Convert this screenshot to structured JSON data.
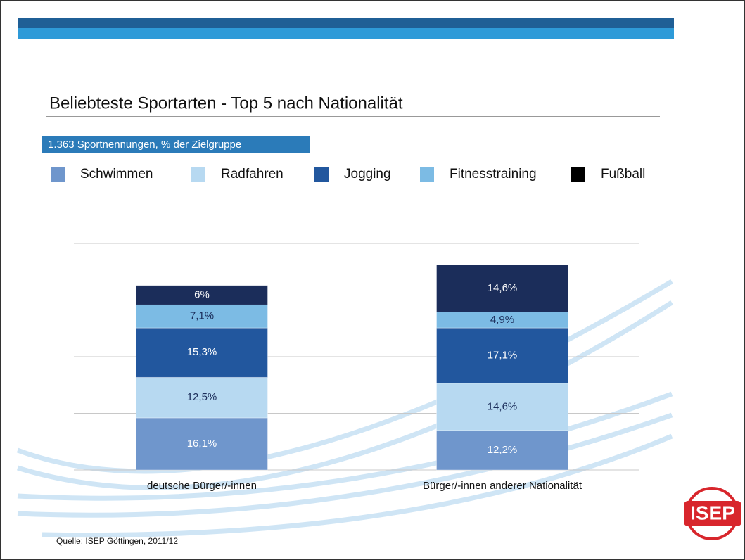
{
  "chart_data": {
    "type": "stacked-bar",
    "title": "Beliebteste Sportarten - Top 5 nach Nationalität",
    "subtitle": "1.363 Sportnennungen, % der Zielgruppe",
    "source": "Quelle: ISEP Göttingen, 2011/12",
    "logo": "ISEP",
    "categories": [
      "deutsche Bürger/-innen",
      "Bürger/-innen anderer Nationalität"
    ],
    "series": [
      {
        "name": "Schwimmen",
        "color": "#6f96cc",
        "values": [
          16.1,
          12.2
        ],
        "value_labels": [
          "16,1%",
          "12,2%"
        ]
      },
      {
        "name": "Radfahren",
        "color": "#b7d9f1",
        "values": [
          12.5,
          14.6
        ],
        "value_labels": [
          "12,5%",
          "14,6%"
        ]
      },
      {
        "name": "Jogging",
        "color": "#22579e",
        "values": [
          15.3,
          17.1
        ],
        "value_labels": [
          "15,3%",
          "17,1%"
        ]
      },
      {
        "name": "Fitnesstraining",
        "color": "#7cbbe4",
        "values": [
          7.1,
          4.9
        ],
        "value_labels": [
          "7,1%",
          "4,9%"
        ]
      },
      {
        "name": "Fußball",
        "color": "#1b2d5a",
        "values": [
          6,
          14.6
        ],
        "value_labels": [
          "6%",
          "14,6%"
        ]
      }
    ],
    "ylim": [
      0,
      70
    ],
    "yticks": [
      0,
      17.5,
      35,
      52.5,
      70
    ],
    "grid": true
  }
}
